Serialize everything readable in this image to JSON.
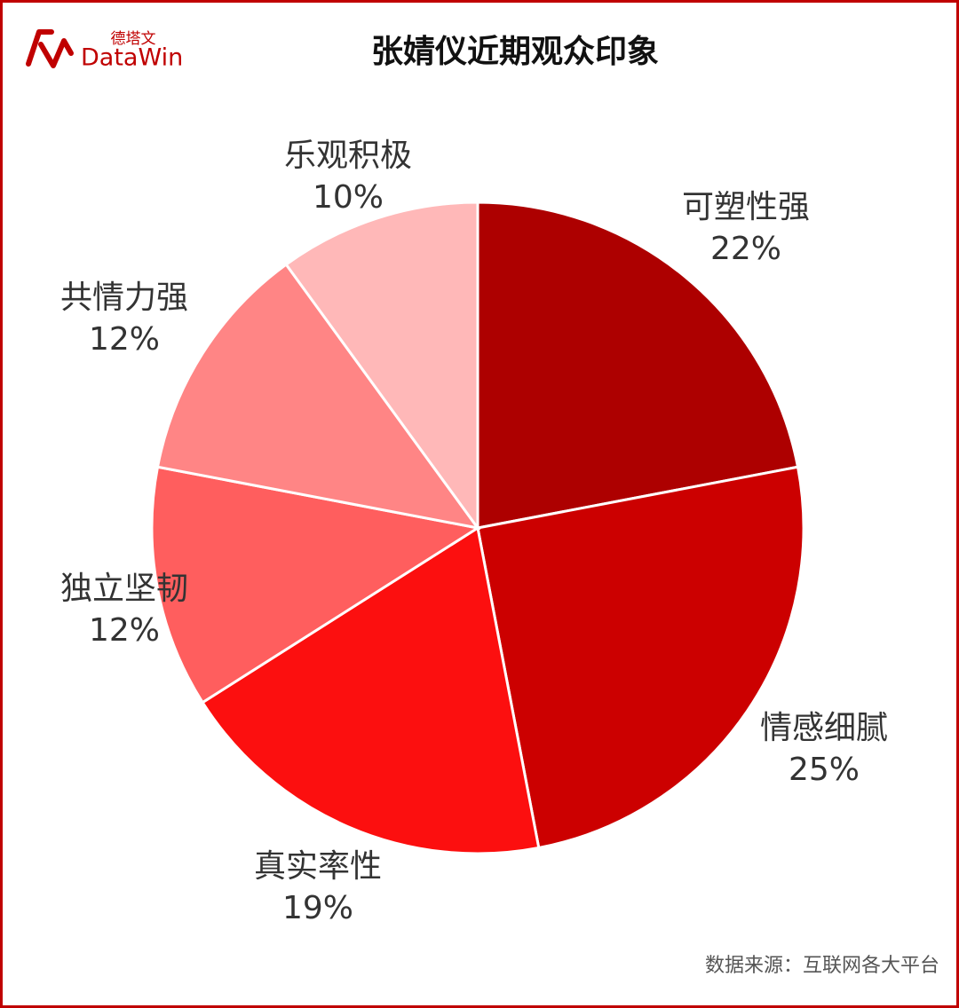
{
  "logo": {
    "cn": "德塔文",
    "en": "DataWin"
  },
  "chart_data": {
    "type": "pie",
    "title": "张婧仪近期观众印象",
    "categories": [
      "可塑性强",
      "情感细腻",
      "真实率性",
      "独立坚韧",
      "共情力强",
      "乐观积极"
    ],
    "values": [
      22,
      25,
      19,
      12,
      12,
      10
    ],
    "value_labels": [
      "22%",
      "25%",
      "19%",
      "12%",
      "12%",
      "10%"
    ],
    "colors": [
      "#ad0000",
      "#cc0000",
      "#fc0f0f",
      "#ff5e5e",
      "#ff8585",
      "#ffb8b8"
    ],
    "source": "数据来源：互联网各大平台"
  }
}
